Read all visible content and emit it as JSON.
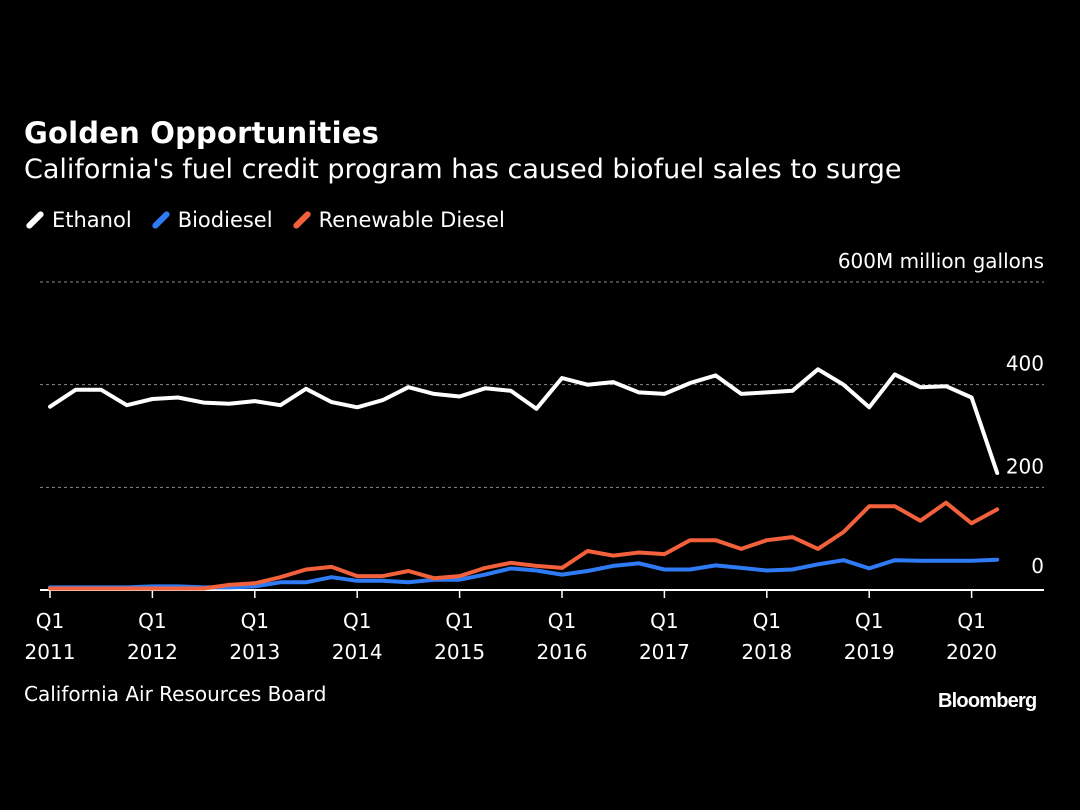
{
  "header": {
    "title": "Golden Opportunities",
    "subtitle": "California's fuel credit program has caused biofuel sales to surge"
  },
  "legend": {
    "items": [
      {
        "label": "Ethanol",
        "color": "#ffffff"
      },
      {
        "label": "Biodiesel",
        "color": "#2f7bf5"
      },
      {
        "label": "Renewable Diesel",
        "color": "#f2613c"
      }
    ]
  },
  "footer": {
    "source": "California Air Resources Board",
    "brand": "Bloomberg"
  },
  "chart_data": {
    "type": "line",
    "ylabel": "600M million gallons",
    "ylim": [
      0,
      600
    ],
    "y_ticks": [
      {
        "value": 0,
        "label": "0"
      },
      {
        "value": 200,
        "label": "200"
      },
      {
        "value": 400,
        "label": "400"
      },
      {
        "value": 600,
        "label": "600M million gallons"
      }
    ],
    "x_ticks": [
      {
        "quarter": "Q1",
        "year": "2011"
      },
      {
        "quarter": "Q1",
        "year": "2012"
      },
      {
        "quarter": "Q1",
        "year": "2013"
      },
      {
        "quarter": "Q1",
        "year": "2014"
      },
      {
        "quarter": "Q1",
        "year": "2015"
      },
      {
        "quarter": "Q1",
        "year": "2016"
      },
      {
        "quarter": "Q1",
        "year": "2017"
      },
      {
        "quarter": "Q1",
        "year": "2018"
      },
      {
        "quarter": "Q1",
        "year": "2019"
      },
      {
        "quarter": "Q1",
        "year": "2020"
      }
    ],
    "grid": true,
    "series": [
      {
        "name": "Ethanol",
        "color": "#ffffff",
        "values": [
          357,
          390,
          390,
          360,
          372,
          375,
          365,
          363,
          368,
          360,
          392,
          366,
          356,
          370,
          395,
          382,
          377,
          393,
          388,
          353,
          413,
          400,
          405,
          385,
          382,
          403,
          418,
          382,
          385,
          388,
          430,
          400,
          356,
          420,
          395,
          397,
          375,
          228
        ]
      },
      {
        "name": "Biodiesel",
        "color": "#2f7bf5",
        "values": [
          5,
          5,
          5,
          5,
          7,
          7,
          5,
          5,
          7,
          15,
          15,
          25,
          18,
          18,
          15,
          20,
          20,
          30,
          42,
          38,
          30,
          37,
          47,
          52,
          40,
          40,
          48,
          43,
          38,
          40,
          50,
          58,
          42,
          58,
          57,
          57,
          57,
          59
        ]
      },
      {
        "name": "Renewable Diesel",
        "color": "#f2613c",
        "values": [
          3,
          3,
          3,
          3,
          3,
          3,
          3,
          10,
          13,
          25,
          40,
          45,
          27,
          27,
          37,
          23,
          27,
          43,
          53,
          47,
          43,
          76,
          67,
          73,
          70,
          97,
          97,
          80,
          97,
          103,
          80,
          113,
          163,
          163,
          135,
          170,
          130,
          157
        ]
      }
    ]
  }
}
